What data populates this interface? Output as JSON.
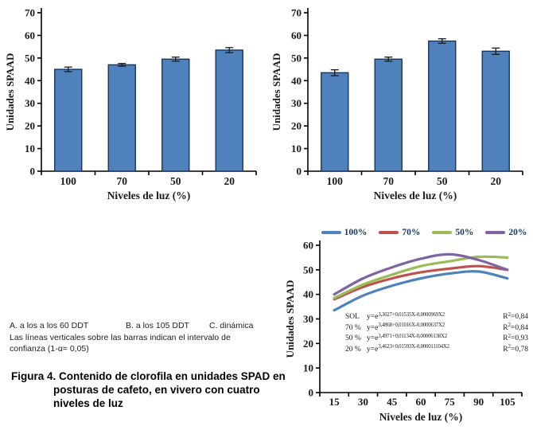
{
  "palette": {
    "bar_fill": "#4f81bd",
    "bar_border": "#17375e",
    "axis_color": "#000000",
    "text_color": "#1a1a1a",
    "error_bar_color": "#1a1a1a"
  },
  "chart_data": [
    {
      "id": "chart_a",
      "type": "bar",
      "panel": "A. a los 60 DDT",
      "categories": [
        "100",
        "70",
        "50",
        "20"
      ],
      "values": [
        45,
        47,
        49.5,
        53.5
      ],
      "errors": [
        1.0,
        0.6,
        0.9,
        1.1
      ],
      "xlabel": "Niveles de luz (%)",
      "ylabel": "Unidades SPAAD",
      "ylim": [
        0,
        70
      ],
      "ytick_step": 10,
      "grid": false
    },
    {
      "id": "chart_b",
      "type": "bar",
      "panel": "B. a los 105 DDT",
      "categories": [
        "100",
        "70",
        "50",
        "20"
      ],
      "values": [
        43.5,
        49.5,
        57.5,
        53
      ],
      "errors": [
        1.3,
        0.9,
        1.0,
        1.4
      ],
      "xlabel": "Niveles de luz (%)",
      "ylabel": "Unidades SPAAD",
      "ylim": [
        0,
        70
      ],
      "ytick_step": 10,
      "grid": false
    },
    {
      "id": "chart_c",
      "type": "line",
      "panel": "C. dinámica",
      "x": [
        15,
        30,
        45,
        60,
        75,
        90,
        105
      ],
      "series": [
        {
          "name": "100%",
          "color": "#4f81bd",
          "values": [
            33.5,
            39.5,
            43.5,
            46.5,
            48.5,
            49.3,
            46.5
          ]
        },
        {
          "name": "70%",
          "color": "#c0504d",
          "values": [
            38,
            43,
            46.5,
            49,
            50.5,
            51.5,
            50
          ]
        },
        {
          "name": "50%",
          "color": "#9bbb59",
          "values": [
            38.5,
            44,
            48,
            51.5,
            53.5,
            55.3,
            55
          ]
        },
        {
          "name": "20%",
          "color": "#8064a2",
          "values": [
            40,
            46.5,
            51,
            54.5,
            56.3,
            54,
            50
          ]
        }
      ],
      "xlabel": "Niveles de luz (%)",
      "ylabel": "Unidades SPAAD",
      "ylim": [
        0,
        60
      ],
      "ytick_step": 10,
      "legend_position": "top",
      "grid": false,
      "equations": [
        {
          "label": "SOL",
          "base": "y=e",
          "exponent": "3,3027+0,01535X-0,0000969X2",
          "r2_base": "R",
          "r2_sup": "2",
          "r2_value": "=0,84"
        },
        {
          "label": "70 %",
          "base": "y=e",
          "exponent": "3,4868+0,01016X-0,0000637X2",
          "r2_base": "R",
          "r2_sup": "2",
          "r2_value": "=0,84"
        },
        {
          "label": "50 %",
          "base": "y=e",
          "exponent": "3,4971+0,01134X-0,00006138X2",
          "r2_base": "R",
          "r2_sup": "2",
          "r2_value": "=0,93"
        },
        {
          "label": "20 %",
          "base": "y=e",
          "exponent": "3,4623+0,01593X-0,000011104X2",
          "r2_base": "R",
          "r2_sup": "2",
          "r2_value": "=0,78"
        }
      ]
    }
  ],
  "notes": {
    "panel_a": "A. a los a los 60 DDT",
    "panel_b": "B. a los 105 DDT",
    "panel_c": "C. dinámica",
    "confidence": "Las líneas verticales sobre las barras indican el intervalo de\nconfianza (1-α= 0,05)"
  },
  "caption": {
    "text": "Figura 4. Contenido de clorofila en unidades SPAD en\nposturas de cafeto, en vivero con cuatro\nniveles de luz"
  }
}
